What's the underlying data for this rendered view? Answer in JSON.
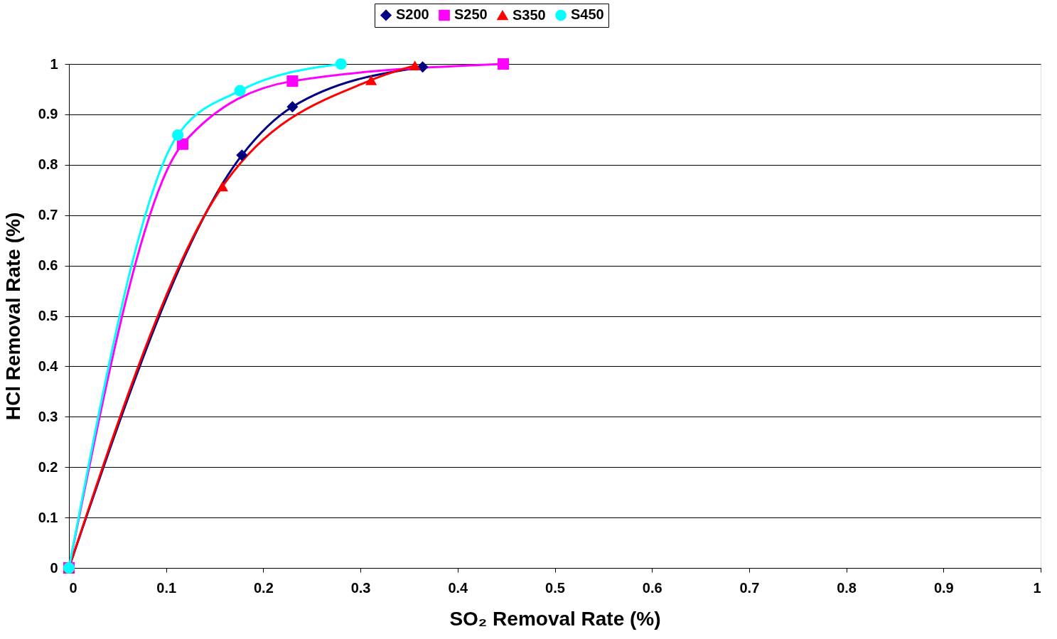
{
  "chart_data": {
    "type": "line",
    "xlabel": "SO₂ Removal Rate (%)",
    "ylabel": "HCl Removal Rate (%)",
    "series": [
      {
        "name": "S200",
        "color": "#000080",
        "marker": "diamond",
        "x": [
          0,
          0.178,
          0.23,
          0.364
        ],
        "values": [
          0,
          0.819,
          0.915,
          0.994
        ]
      },
      {
        "name": "S250",
        "color": "#ff00ff",
        "marker": "square",
        "x": [
          0,
          0.117,
          0.23,
          0.447
        ],
        "values": [
          0,
          0.841,
          0.966,
          1.0
        ]
      },
      {
        "name": "S350",
        "color": "#ff0000",
        "marker": "triangle",
        "x": [
          0,
          0.158,
          0.311,
          0.356
        ],
        "values": [
          0,
          0.757,
          0.968,
          0.997
        ]
      },
      {
        "name": "S450",
        "color": "#00ffff",
        "marker": "circle",
        "x": [
          0,
          0.112,
          0.176,
          0.28
        ],
        "values": [
          0,
          0.859,
          0.947,
          1.0
        ]
      }
    ],
    "xlim": [
      0,
      1
    ],
    "ylim": [
      0,
      1
    ],
    "xticks": [
      0,
      0.1,
      0.2,
      0.3,
      0.4,
      0.5,
      0.6,
      0.7,
      0.8,
      0.9,
      1
    ],
    "yticks": [
      0,
      0.1,
      0.2,
      0.3,
      0.4,
      0.5,
      0.6,
      0.7,
      0.8,
      0.9,
      1
    ],
    "grid": "y",
    "legend": "top",
    "line_style": "solid"
  }
}
